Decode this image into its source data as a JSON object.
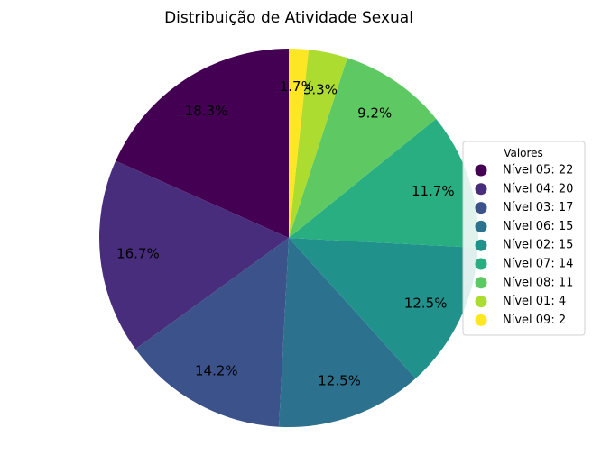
{
  "chart_data": {
    "type": "pie",
    "title": "Distribuição de Atividade Sexual",
    "legend_title": "Valores",
    "legend_position": "right",
    "start_angle_deg": 90,
    "direction": "counterclockwise",
    "slices": [
      {
        "label": "Nível 05",
        "value": 22,
        "pct_label": "18.3%",
        "legend": "Nível 05: 22",
        "color": "#440154"
      },
      {
        "label": "Nível 04",
        "value": 20,
        "pct_label": "16.7%",
        "legend": "Nível 04: 20",
        "color": "#472d7b"
      },
      {
        "label": "Nível 03",
        "value": 17,
        "pct_label": "14.2%",
        "legend": "Nível 03: 17",
        "color": "#3b528b"
      },
      {
        "label": "Nível 06",
        "value": 15,
        "pct_label": "12.5%",
        "legend": "Nível 06: 15",
        "color": "#2c728e"
      },
      {
        "label": "Nível 02",
        "value": 15,
        "pct_label": "12.5%",
        "legend": "Nível 02: 15",
        "color": "#21918c"
      },
      {
        "label": "Nível 07",
        "value": 14,
        "pct_label": "11.7%",
        "legend": "Nível 07: 14",
        "color": "#28ae80"
      },
      {
        "label": "Nível 08",
        "value": 11,
        "pct_label": "9.2%",
        "legend": "Nível 08: 11",
        "color": "#5ec962"
      },
      {
        "label": "Nível 01",
        "value": 4,
        "pct_label": "3.3%",
        "legend": "Nível 01: 4",
        "color": "#addc30"
      },
      {
        "label": "Nível 09",
        "value": 2,
        "pct_label": "1.7%",
        "legend": "Nível 09: 2",
        "color": "#fde725"
      }
    ]
  }
}
